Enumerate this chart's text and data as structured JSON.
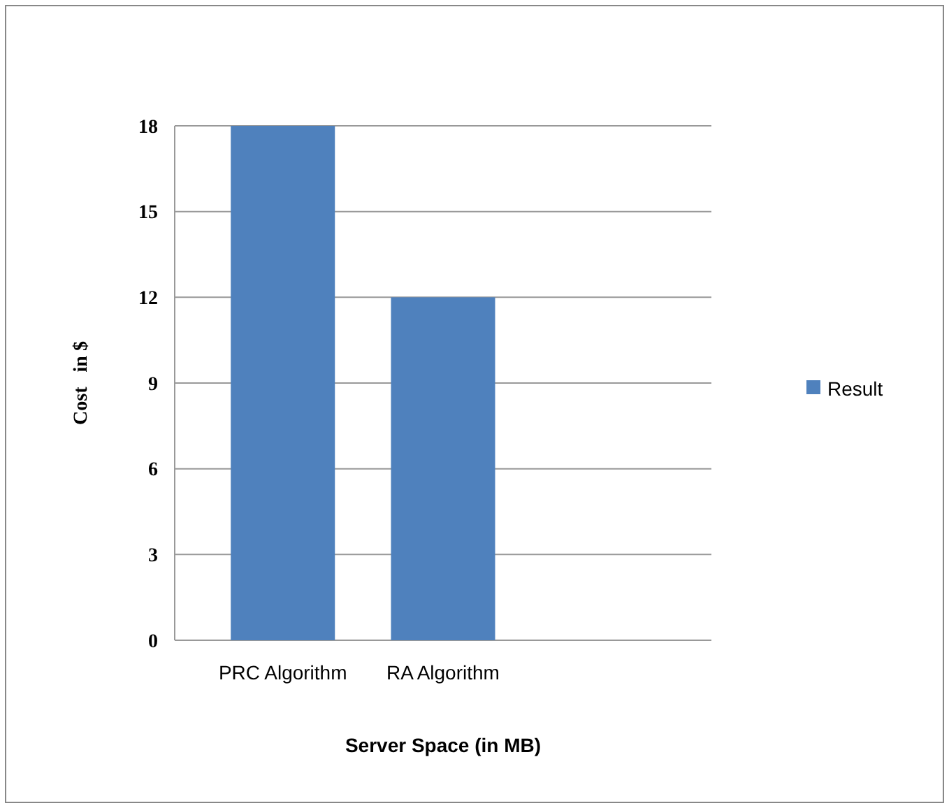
{
  "chart_data": {
    "type": "bar",
    "xlabel": "Server Space  (in MB)",
    "ylabel": "Cost   in $",
    "categories": [
      "PRC Algorithm",
      "RA Algorithm",
      null
    ],
    "series": [
      {
        "name": "Result",
        "color": "#4f81bd",
        "values": [
          18,
          12,
          null
        ]
      }
    ],
    "ylim": [
      0,
      18
    ],
    "yticks": [
      0,
      3,
      6,
      9,
      12,
      15,
      18
    ],
    "grid": "y",
    "legend": "right"
  }
}
